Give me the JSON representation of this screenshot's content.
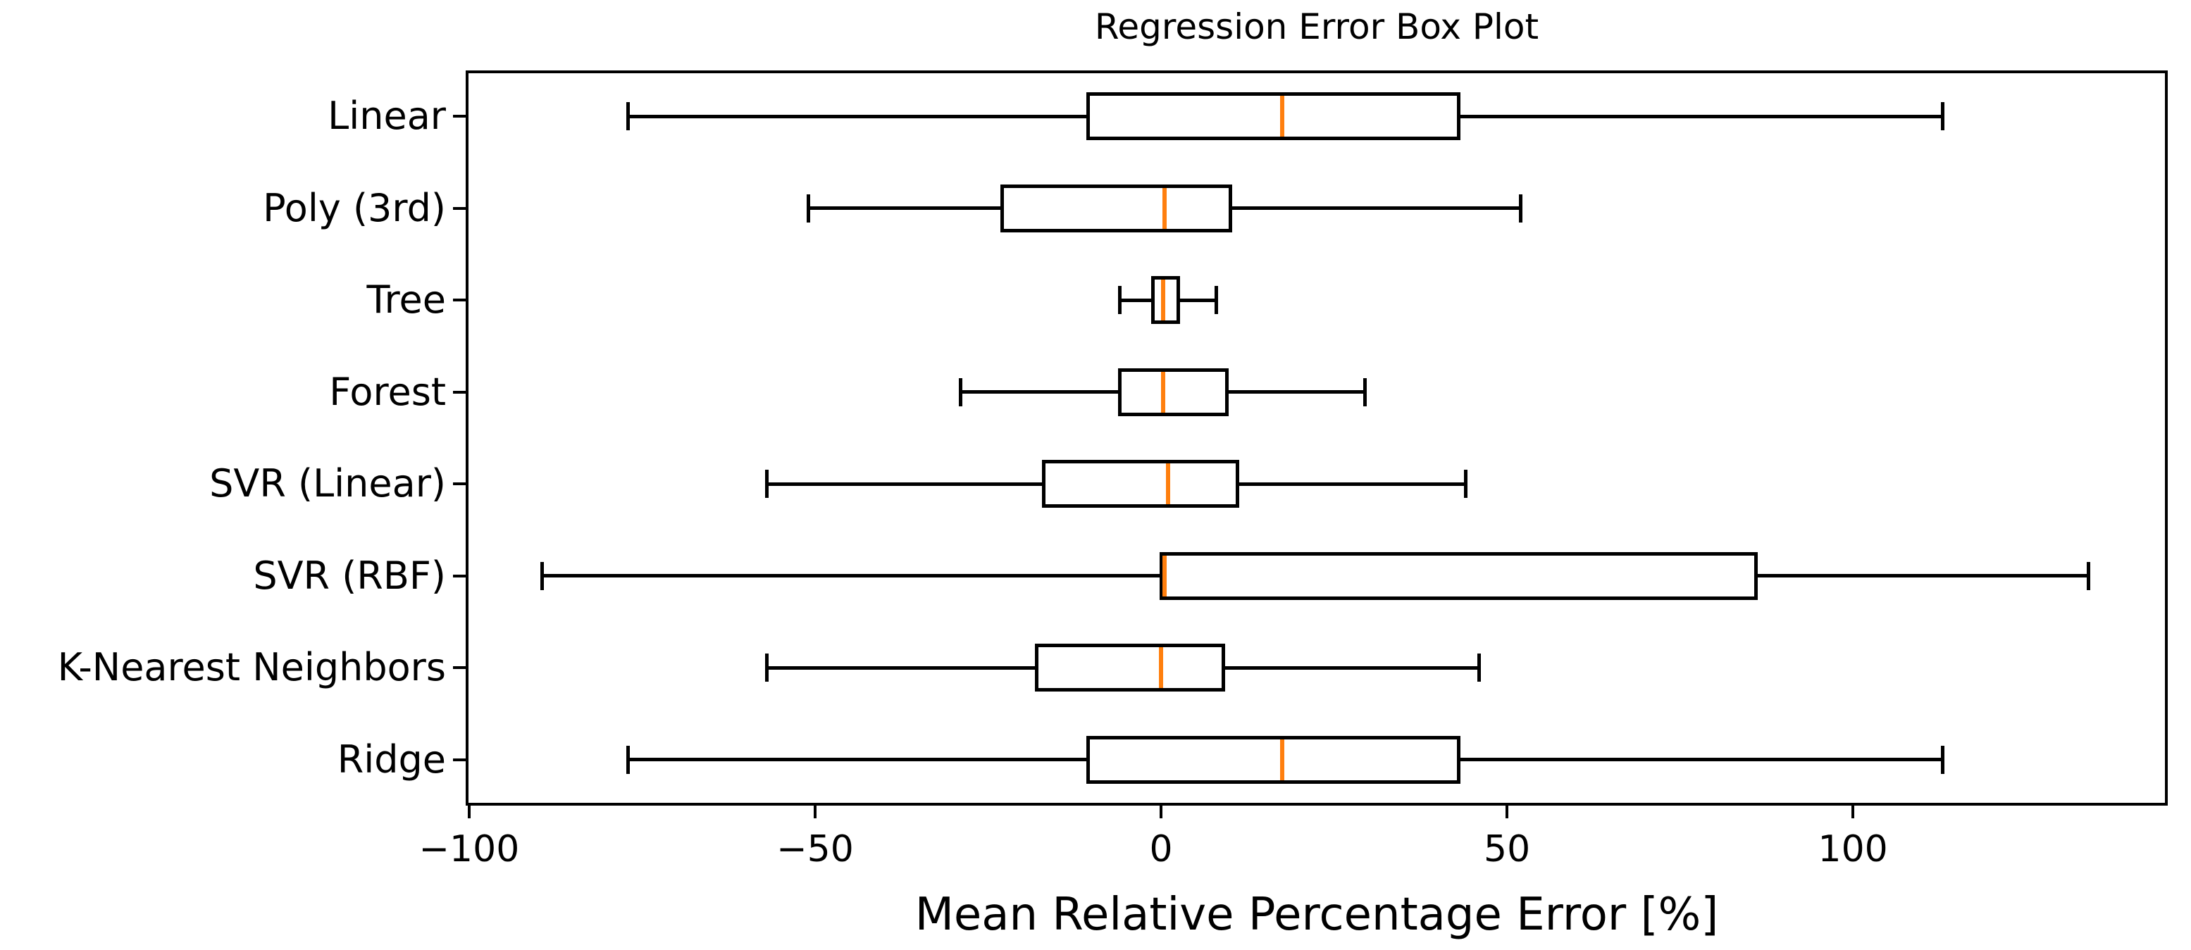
{
  "chart_data": {
    "type": "boxplot",
    "orientation": "horizontal",
    "title": "Regression Error Box Plot",
    "xlabel": "Mean Relative Percentage Error [%]",
    "ylabel": "",
    "xlim": [
      -100.5,
      145.5
    ],
    "x_ticks": [
      -100,
      -50,
      0,
      50,
      100
    ],
    "x_tick_labels": [
      "−100",
      "−50",
      "0",
      "50",
      "100"
    ],
    "grid": false,
    "legend": "none",
    "categories": [
      "Linear",
      "Poly (3rd)",
      "Tree",
      "Forest",
      "SVR (Linear)",
      "SVR (RBF)",
      "K-Nearest Neighbors",
      "Ridge"
    ],
    "series": [
      {
        "name": "Linear",
        "whislo": -77,
        "q1": -10.5,
        "med": 17.5,
        "q3": 43,
        "whishi": 113
      },
      {
        "name": "Poly (3rd)",
        "whislo": -51,
        "q1": -23,
        "med": 0.5,
        "q3": 10,
        "whishi": 52
      },
      {
        "name": "Tree",
        "whislo": -6,
        "q1": -1.2,
        "med": 0.3,
        "q3": 2.5,
        "whishi": 8
      },
      {
        "name": "Forest",
        "whislo": -29,
        "q1": -6,
        "med": 0.3,
        "q3": 9.5,
        "whishi": 29.5
      },
      {
        "name": "SVR (Linear)",
        "whislo": -57,
        "q1": -17,
        "med": 1,
        "q3": 11,
        "whishi": 44
      },
      {
        "name": "SVR (RBF)",
        "whislo": -89.5,
        "q1": 0,
        "med": 0.5,
        "q3": 86,
        "whishi": 134
      },
      {
        "name": "K-Nearest Neighbors",
        "whislo": -57,
        "q1": -18,
        "med": 0,
        "q3": 9,
        "whishi": 46
      },
      {
        "name": "Ridge",
        "whislo": -77,
        "q1": -10.5,
        "med": 17.5,
        "q3": 43,
        "whishi": 113
      }
    ],
    "colors": {
      "line": "#000000",
      "median": "#ff7f0e",
      "background": "#ffffff"
    }
  }
}
